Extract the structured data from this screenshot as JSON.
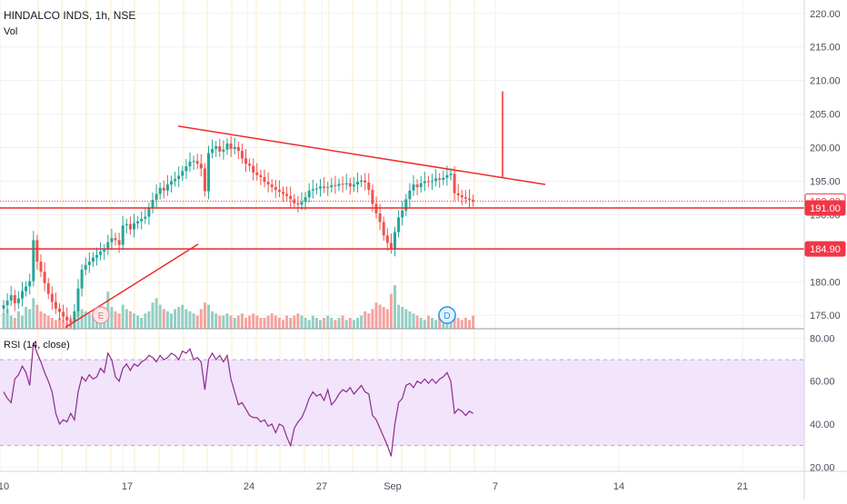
{
  "header": {
    "symbol": "HINDALCO INDS, 1h, NSE",
    "volume_label": "Vol",
    "rsi_label": "RSI (14, close)"
  },
  "price_axis": {
    "ticks": [
      "220.00",
      "215.00",
      "210.00",
      "205.00",
      "200.00",
      "195.00",
      "190.00",
      "185.00",
      "180.00",
      "175.00"
    ],
    "tick_values": [
      220,
      215,
      210,
      205,
      200,
      195,
      190,
      185,
      180,
      175
    ],
    "range": [
      173,
      222
    ]
  },
  "rsi_axis": {
    "ticks": [
      "80.00",
      "60.00",
      "40.00",
      "20.00"
    ],
    "tick_values": [
      80,
      60,
      40,
      20
    ],
    "range": [
      18,
      84
    ],
    "band": [
      30,
      70
    ]
  },
  "time_axis": {
    "labels": [
      "10",
      "17",
      "24",
      "27",
      "Sep",
      "7",
      "14",
      "21"
    ]
  },
  "price_badges": [
    {
      "text": "192.00",
      "value": 192.0,
      "style": "outline"
    },
    {
      "text": "191.00",
      "value": 191.0,
      "style": "filled"
    },
    {
      "text": "184.90",
      "value": 184.9,
      "style": "filled"
    }
  ],
  "events": [
    {
      "letter": "E",
      "kind": "earnings"
    },
    {
      "letter": "D",
      "kind": "dividend"
    }
  ],
  "colors": {
    "up": "#26a69a",
    "down": "#ef5350",
    "volume_up": "#93cfc3",
    "volume_down": "#f5a3a0",
    "drawing": "#ef2b2b",
    "rsi_line": "#8e2b8e",
    "rsi_band": "#f1e4fb",
    "session_line": "#fdebc4",
    "grid": "#eef0f3",
    "axis_text": "#4a4e59"
  },
  "chart_data": {
    "type": "candlestick",
    "timeframe": "1h",
    "price_closes": [
      176.5,
      177.2,
      178.0,
      176.8,
      177.5,
      178.6,
      179.3,
      180.1,
      186.2,
      183.0,
      181.5,
      179.8,
      178.2,
      177.0,
      176.0,
      175.5,
      174.8,
      174.2,
      174.0,
      175.6,
      179.0,
      181.8,
      182.5,
      183.0,
      183.6,
      184.0,
      184.5,
      184.8,
      185.9,
      186.5,
      186.2,
      185.5,
      188.4,
      188.6,
      187.8,
      188.7,
      189.0,
      189.4,
      189.7,
      191.0,
      192.2,
      193.1,
      194.0,
      193.6,
      194.5,
      195.0,
      195.3,
      195.8,
      196.5,
      197.2,
      197.9,
      198.0,
      197.6,
      196.9,
      193.5,
      199.2,
      199.8,
      200.2,
      199.4,
      199.7,
      200.6,
      199.8,
      200.1,
      199.5,
      198.4,
      197.6,
      197.3,
      196.3,
      195.9,
      195.6,
      194.9,
      194.5,
      194.1,
      193.7,
      193.4,
      193.1,
      192.8,
      192.3,
      191.7,
      191.5,
      191.9,
      192.6,
      193.6,
      193.8,
      193.9,
      194.2,
      194.0,
      194.1,
      194.4,
      194.3,
      194.6,
      194.5,
      194.7,
      194.2,
      194.5,
      194.9,
      195.1,
      194.8,
      193.7,
      191.6,
      190.2,
      188.9,
      186.9,
      185.8,
      185.0,
      187.4,
      189.6,
      190.6,
      192.3,
      193.6,
      194.5,
      194.1,
      194.7,
      195.0,
      194.9,
      195.0,
      195.4,
      195.2,
      195.5,
      195.9,
      196.1,
      193.2,
      192.9,
      192.6,
      192.4,
      192.2,
      192.0
    ],
    "volume_relative": [
      0.35,
      0.45,
      0.3,
      0.25,
      0.4,
      0.3,
      0.5,
      0.45,
      0.7,
      0.55,
      0.4,
      0.35,
      0.3,
      0.25,
      0.2,
      0.25,
      0.2,
      0.15,
      0.25,
      0.3,
      0.9,
      0.45,
      0.4,
      0.35,
      0.3,
      0.4,
      0.35,
      0.3,
      0.85,
      0.5,
      0.4,
      0.35,
      0.55,
      0.45,
      0.4,
      0.35,
      0.3,
      0.25,
      0.35,
      0.4,
      0.6,
      0.7,
      0.55,
      0.45,
      0.4,
      0.35,
      0.45,
      0.5,
      0.55,
      0.45,
      0.4,
      0.35,
      0.3,
      0.45,
      0.6,
      0.55,
      0.4,
      0.35,
      0.3,
      0.3,
      0.35,
      0.3,
      0.25,
      0.3,
      0.35,
      0.25,
      0.3,
      0.35,
      0.3,
      0.25,
      0.25,
      0.3,
      0.35,
      0.3,
      0.25,
      0.2,
      0.3,
      0.25,
      0.3,
      0.35,
      0.3,
      0.25,
      0.2,
      0.3,
      0.25,
      0.2,
      0.25,
      0.3,
      0.25,
      0.2,
      0.25,
      0.3,
      0.2,
      0.25,
      0.2,
      0.25,
      0.3,
      0.4,
      0.35,
      0.45,
      0.6,
      0.55,
      0.5,
      0.45,
      0.8,
      1.0,
      0.55,
      0.5,
      0.45,
      0.4,
      0.35,
      0.3,
      0.25,
      0.2,
      0.3,
      0.25,
      0.2,
      0.35,
      0.3,
      0.25,
      0.2,
      0.3,
      0.25,
      0.2,
      0.25,
      0.2,
      0.3
    ],
    "rsi_values": [
      55,
      52,
      50,
      61,
      63,
      67,
      64,
      58,
      78,
      73,
      69,
      64,
      60,
      55,
      45,
      40,
      42,
      41,
      45,
      42,
      55,
      62,
      60,
      63,
      61,
      62,
      66,
      64,
      73,
      70,
      62,
      60,
      66,
      68,
      65,
      68,
      67,
      69,
      70,
      72,
      71,
      69,
      72,
      70,
      71,
      73,
      72,
      70,
      74,
      73,
      75,
      70,
      71,
      69,
      56,
      70,
      73,
      70,
      72,
      69,
      72,
      61,
      55,
      49,
      50,
      47,
      44,
      43,
      43,
      41,
      42,
      39,
      40,
      36,
      40,
      39,
      34,
      30,
      38,
      41,
      43,
      47,
      52,
      55,
      53,
      54,
      51,
      56,
      49,
      51,
      54,
      56,
      55,
      57,
      54,
      56,
      58,
      55,
      54,
      44,
      42,
      38,
      34,
      30,
      25,
      40,
      50,
      52,
      58,
      59,
      57,
      60,
      59,
      61,
      59,
      61,
      59,
      61,
      62,
      64,
      60,
      45,
      47,
      46,
      44,
      46,
      45
    ],
    "y_range": [
      173,
      222
    ],
    "rsi_range": [
      18,
      84
    ],
    "rsi_band": [
      30,
      70
    ],
    "horizontal_levels": [
      191.0,
      184.9
    ],
    "last_price": 192.0,
    "x_labels": [
      "10",
      "17",
      "24",
      "27",
      "Sep",
      "7",
      "14",
      "21"
    ],
    "title": "HINDALCO INDS, 1h, NSE"
  }
}
